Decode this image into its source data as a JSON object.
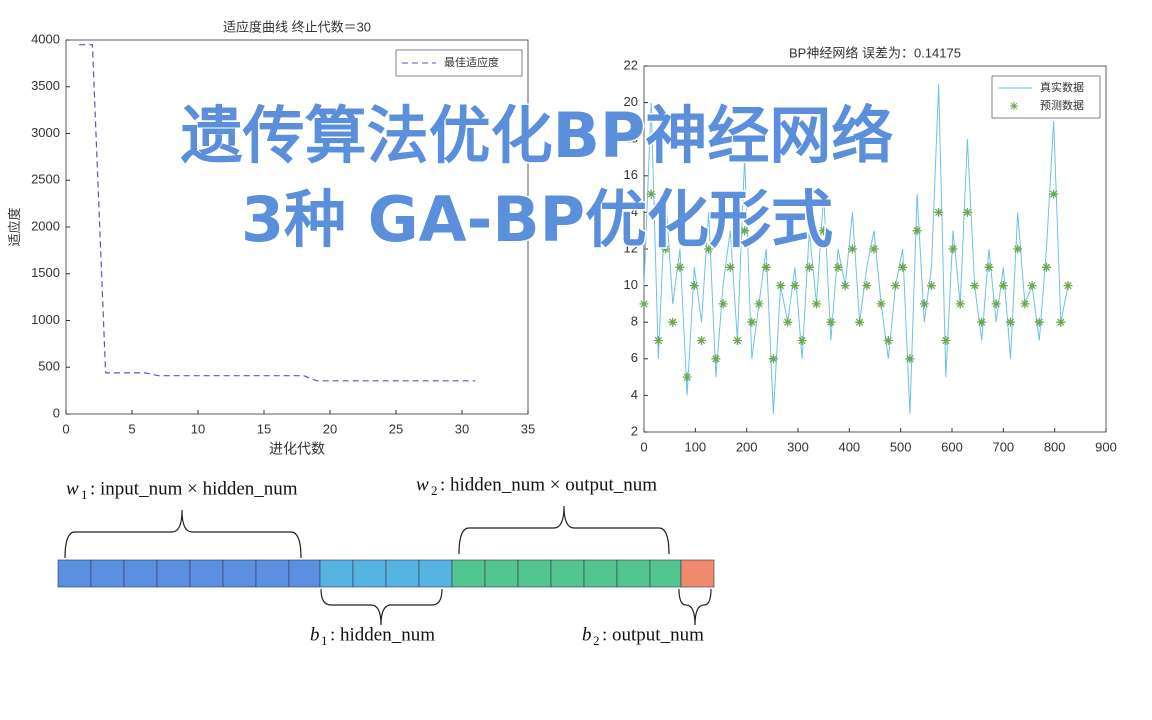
{
  "chart_data": [
    {
      "type": "line",
      "title": "适应度曲线  终止代数＝30",
      "xlabel": "进化代数",
      "ylabel": "适应度",
      "x": [
        1,
        2,
        3,
        4,
        5,
        6,
        7,
        8,
        9,
        10,
        11,
        12,
        13,
        14,
        15,
        16,
        17,
        18,
        19,
        20,
        21,
        22,
        23,
        24,
        25,
        26,
        27,
        28,
        29,
        30,
        31
      ],
      "series": [
        {
          "name": "最佳适应度",
          "color": "#5555cc",
          "style": "dashed",
          "values": [
            3950,
            3950,
            440,
            440,
            440,
            440,
            410,
            410,
            410,
            410,
            410,
            410,
            410,
            410,
            410,
            410,
            410,
            410,
            355,
            355,
            355,
            355,
            355,
            355,
            355,
            355,
            355,
            355,
            355,
            355,
            355
          ]
        }
      ],
      "xlim": [
        0,
        35
      ],
      "xticks": [
        0,
        5,
        10,
        15,
        20,
        25,
        30,
        35
      ],
      "ylim": [
        0,
        4000
      ],
      "yticks": [
        0,
        500,
        1000,
        1500,
        2000,
        2500,
        3000,
        3500,
        4000
      ],
      "legend": "northeast"
    },
    {
      "type": "line-scatter",
      "title": "BP神经网络   误差为：0.14175",
      "x": [
        0,
        14,
        28,
        42,
        56,
        70,
        84,
        98,
        112,
        126,
        140,
        154,
        168,
        182,
        196,
        210,
        224,
        238,
        252,
        266,
        280,
        294,
        308,
        322,
        336,
        350,
        364,
        378,
        392,
        406,
        420,
        434,
        448,
        462,
        476,
        490,
        504,
        518,
        532,
        546,
        560,
        574,
        588,
        602,
        616,
        630,
        644,
        658,
        672,
        686,
        700,
        714,
        728,
        742,
        756,
        770,
        784,
        798,
        812,
        826
      ],
      "series": [
        {
          "name": "真实数据",
          "color": "#6ec1e8",
          "style": "line",
          "values": [
            10,
            20,
            6,
            15,
            9,
            12,
            4,
            11,
            8,
            14,
            5,
            10,
            13,
            7,
            17,
            6,
            9,
            12,
            3,
            10,
            8,
            11,
            6,
            13,
            9,
            15,
            7,
            12,
            10,
            14,
            8,
            11,
            13,
            9,
            6,
            10,
            12,
            3,
            15,
            8,
            11,
            21,
            5,
            13,
            9,
            18,
            10,
            7,
            12,
            8,
            11,
            6,
            14,
            9,
            10,
            7,
            12,
            19,
            8,
            10
          ]
        },
        {
          "name": "预测数据",
          "color": "#6aa84f",
          "style": "star",
          "values": [
            9,
            15,
            7,
            12,
            8,
            11,
            5,
            10,
            7,
            12,
            6,
            9,
            11,
            7,
            13,
            8,
            9,
            11,
            6,
            10,
            8,
            10,
            7,
            11,
            9,
            13,
            8,
            11,
            10,
            12,
            8,
            10,
            12,
            9,
            7,
            10,
            11,
            6,
            13,
            9,
            10,
            14,
            7,
            12,
            9,
            14,
            10,
            8,
            11,
            9,
            10,
            8,
            12,
            9,
            10,
            8,
            11,
            15,
            8,
            10
          ]
        }
      ],
      "xlim": [
        0,
        900
      ],
      "xticks": [
        0,
        100,
        200,
        300,
        400,
        500,
        600,
        700,
        800,
        900
      ],
      "ylim": [
        2,
        22
      ],
      "yticks": [
        2,
        4,
        6,
        8,
        10,
        12,
        14,
        16,
        18,
        20,
        22
      ],
      "legend": "northeast"
    }
  ],
  "overlay": {
    "line1": "遗传算法优化BP神经网络",
    "line2": "3种 GA-BP优化形式"
  },
  "diagram": {
    "w1": {
      "symbol": "w",
      "sub": "1",
      "text": ": input_num × hidden_num"
    },
    "w2": {
      "symbol": "w",
      "sub": "2",
      "text": ": hidden_num × output_num"
    },
    "b1": {
      "symbol": "b",
      "sub": "1",
      "text": ": hidden_num"
    },
    "b2": {
      "symbol": "b",
      "sub": "2",
      "text": ": output_num"
    }
  }
}
